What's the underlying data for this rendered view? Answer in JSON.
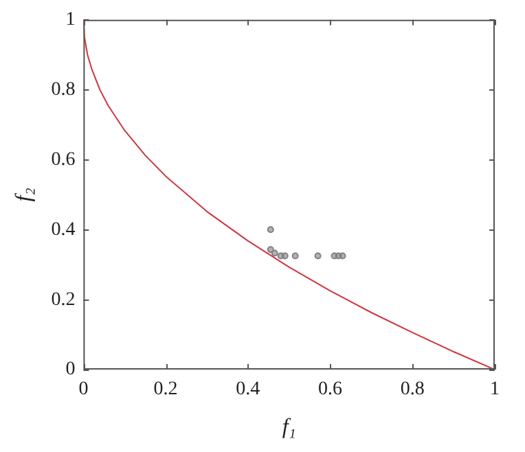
{
  "chart_data": {
    "type": "line",
    "xlabel": "f₁",
    "ylabel": "f₂",
    "xlim": [
      0,
      1
    ],
    "ylim": [
      0,
      1
    ],
    "xticks": [
      0,
      0.2,
      0.4,
      0.6,
      0.8,
      1
    ],
    "yticks": [
      0,
      0.2,
      0.4,
      0.6,
      0.8,
      1
    ],
    "grid": false,
    "legend": false,
    "series": [
      {
        "color": "#d0343c",
        "marker": "none",
        "line_style": "solid",
        "x": [
          0,
          0.0025,
          0.01,
          0.02,
          0.04,
          0.06,
          0.1,
          0.15,
          0.2,
          0.3,
          0.4,
          0.5,
          0.6,
          0.7,
          0.8,
          0.9,
          1
        ],
        "values": [
          1,
          0.95,
          0.9,
          0.86,
          0.8,
          0.755,
          0.684,
          0.613,
          0.553,
          0.452,
          0.368,
          0.293,
          0.225,
          0.163,
          0.106,
          0.051,
          0
        ]
      },
      {
        "type": "scatter",
        "color": "#808080",
        "marker": "circle",
        "x": [
          0.455,
          0.455,
          0.465,
          0.48,
          0.49,
          0.515,
          0.57,
          0.61,
          0.62,
          0.63
        ],
        "values": [
          0.4,
          0.343,
          0.333,
          0.325,
          0.325,
          0.325,
          0.325,
          0.325,
          0.325,
          0.325
        ]
      }
    ]
  }
}
